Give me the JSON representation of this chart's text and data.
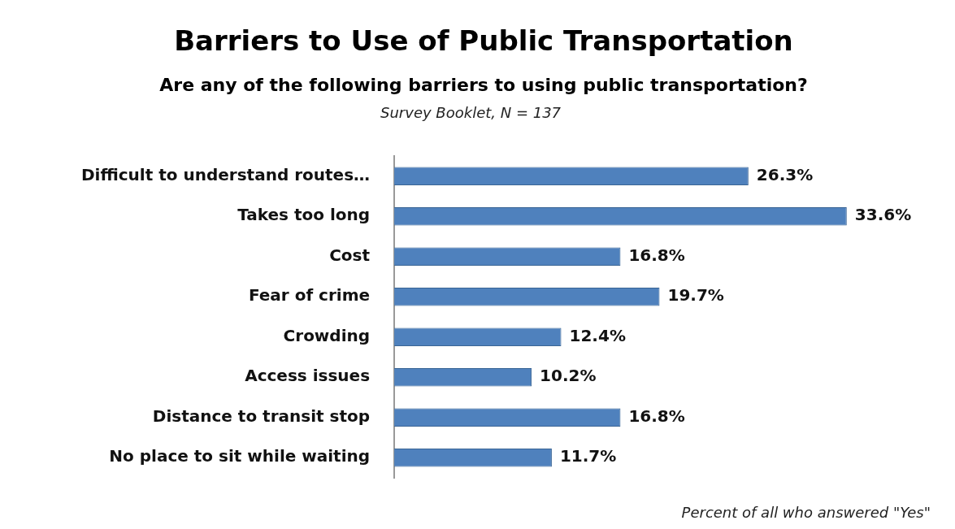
{
  "chart_data": {
    "type": "bar",
    "orientation": "horizontal",
    "title": "Barriers to Use of Public Transportation",
    "subtitle": "Are any of the following barriers to using public transportation?",
    "categories": [
      "Difficult to understand routes…",
      "Takes too long",
      "Cost",
      "Fear of crime",
      "Crowding",
      "Access issues",
      "Distance to transit stop",
      "No place to sit while waiting"
    ],
    "values": [
      26.3,
      33.6,
      16.8,
      19.7,
      12.4,
      10.2,
      16.8,
      11.7
    ],
    "value_labels": [
      "26.3%",
      "33.6%",
      "16.8%",
      "19.7%",
      "12.4%",
      "10.2%",
      "16.8%",
      "11.7%"
    ],
    "color": "#4f81bd",
    "legend": false,
    "annotations": [
      "Survey Booklet, N = 137",
      "Percent of all who answered \"Yes\""
    ]
  }
}
